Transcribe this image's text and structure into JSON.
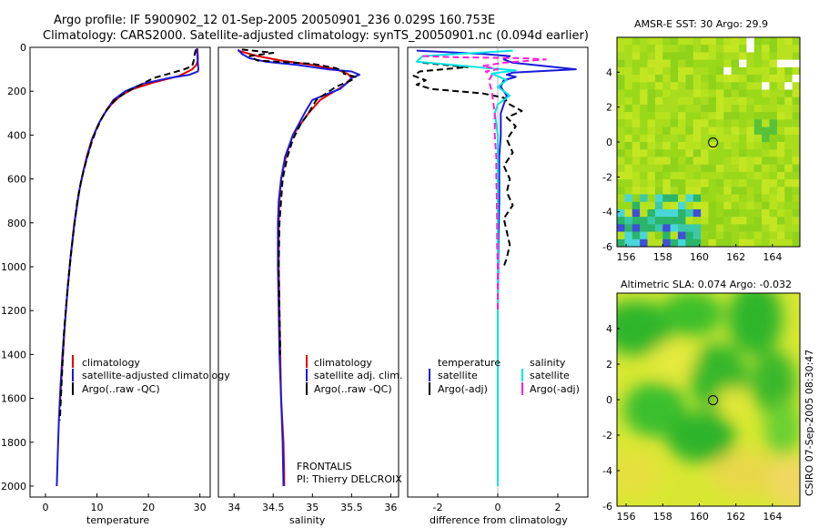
{
  "header": {
    "line1": "Argo profile: IF 5900902_12 01-Sep-2005 20050901_236 0.029S 160.753E",
    "line2": "Climatology: CARS2000. Satellite-adjusted climatology: synTS_20050901.nc (0.094d earlier)"
  },
  "side_label": "CSIRO 07-Sep-2005 08:30:47",
  "colors": {
    "climatology": "#e00000",
    "satellite": "#1a1adc",
    "argo": "#000000",
    "satellite_salinity": "#00e6e6",
    "argo_salinity": "#ff1ed2"
  },
  "chart_data": [
    {
      "type": "line",
      "id": "temperature",
      "xlabel": "temperature",
      "ylabel": "",
      "xlim": [
        -3,
        32
      ],
      "ylim": [
        2050,
        0
      ],
      "xticks": [
        0,
        10,
        20,
        30
      ],
      "yticks": [
        0,
        200,
        400,
        600,
        800,
        1000,
        1200,
        1400,
        1600,
        1800,
        2000
      ],
      "legend": [
        "climatology",
        "satellite-adjusted climatology",
        "Argo(..raw -QC)"
      ],
      "series": [
        {
          "name": "climatology",
          "style": "solid",
          "color": "#e00000",
          "points": [
            [
              29.5,
              5
            ],
            [
              29.6,
              40
            ],
            [
              29.6,
              60
            ],
            [
              29.3,
              80
            ],
            [
              28.5,
              100
            ],
            [
              26,
              130
            ],
            [
              21,
              160
            ],
            [
              17,
              190
            ],
            [
              14.6,
              220
            ],
            [
              12.8,
              260
            ],
            [
              11.5,
              300
            ],
            [
              10.3,
              350
            ],
            [
              9,
              420
            ],
            [
              8,
              500
            ],
            [
              7.2,
              580
            ],
            [
              6.5,
              660
            ],
            [
              5.6,
              800
            ],
            [
              4.9,
              950
            ],
            [
              4.3,
              1100
            ],
            [
              3.8,
              1250
            ],
            [
              3.4,
              1400
            ],
            [
              3.0,
              1550
            ],
            [
              2.8,
              1640
            ]
          ]
        },
        {
          "name": "satellite-adjusted climatology",
          "style": "solid",
          "color": "#1a1adc",
          "points": [
            [
              29.4,
              5
            ],
            [
              29.5,
              40
            ],
            [
              29.6,
              70
            ],
            [
              29.7,
              100
            ],
            [
              29.6,
              110
            ],
            [
              28,
              125
            ],
            [
              24,
              140
            ],
            [
              19,
              165
            ],
            [
              15.5,
              200
            ],
            [
              13.2,
              240
            ],
            [
              11.8,
              290
            ],
            [
              10.5,
              340
            ],
            [
              9.2,
              410
            ],
            [
              8.2,
              490
            ],
            [
              7.3,
              570
            ],
            [
              6.6,
              650
            ],
            [
              5.7,
              790
            ],
            [
              4.9,
              950
            ],
            [
              4.3,
              1100
            ],
            [
              3.8,
              1250
            ],
            [
              3.3,
              1400
            ],
            [
              2.9,
              1550
            ],
            [
              2.6,
              1700
            ],
            [
              2.4,
              1850
            ],
            [
              2.2,
              2000
            ]
          ]
        },
        {
          "name": "Argo(..raw -QC)",
          "style": "dashed",
          "color": "#000000",
          "points": [
            [
              29.2,
              10
            ],
            [
              29.0,
              30
            ],
            [
              28.8,
              60
            ],
            [
              28.5,
              85
            ],
            [
              27,
              100
            ],
            [
              24,
              120
            ],
            [
              21,
              140
            ],
            [
              18.5,
              170
            ],
            [
              16,
              200
            ],
            [
              13.5,
              240
            ],
            [
              12,
              280
            ],
            [
              11,
              320
            ],
            [
              10,
              370
            ],
            [
              9,
              430
            ],
            [
              8,
              510
            ],
            [
              7,
              600
            ],
            [
              6.2,
              700
            ],
            [
              5.4,
              850
            ],
            [
              4.7,
              1000
            ],
            [
              4.1,
              1150
            ],
            [
              3.6,
              1300
            ],
            [
              3.3,
              1450
            ],
            [
              3.0,
              1600
            ],
            [
              2.8,
              1700
            ]
          ]
        }
      ]
    },
    {
      "type": "line",
      "id": "salinity",
      "xlabel": "salinity",
      "ylabel": "",
      "xlim": [
        33.8,
        36.1
      ],
      "ylim": [
        2050,
        0
      ],
      "xticks": [
        34,
        34.5,
        35,
        35.5,
        36
      ],
      "legend": [
        "climatology",
        "satellite adj. clim.",
        "Argo(..raw -QC)"
      ],
      "annotation": [
        "FRONTALIS",
        "PI: Thierry DELCROIX"
      ],
      "series": [
        {
          "name": "climatology",
          "style": "solid",
          "color": "#e00000",
          "points": [
            [
              34.05,
              15
            ],
            [
              34.3,
              40
            ],
            [
              34.6,
              60
            ],
            [
              35.0,
              80
            ],
            [
              35.3,
              100
            ],
            [
              35.45,
              120
            ],
            [
              35.5,
              140
            ],
            [
              35.4,
              175
            ],
            [
              35.1,
              240
            ],
            [
              34.95,
              300
            ],
            [
              34.75,
              400
            ],
            [
              34.66,
              500
            ],
            [
              34.6,
              600
            ],
            [
              34.58,
              700
            ],
            [
              34.57,
              800
            ],
            [
              34.57,
              1000
            ],
            [
              34.58,
              1200
            ],
            [
              34.59,
              1400
            ],
            [
              34.6,
              1600
            ],
            [
              34.63,
              1800
            ],
            [
              34.64,
              1950
            ],
            [
              34.64,
              2000
            ]
          ]
        },
        {
          "name": "satellite adj. clim.",
          "style": "solid",
          "color": "#1a1adc",
          "points": [
            [
              34.05,
              10
            ],
            [
              34.1,
              30
            ],
            [
              34.2,
              50
            ],
            [
              34.4,
              65
            ],
            [
              34.8,
              80
            ],
            [
              35.2,
              100
            ],
            [
              35.5,
              110
            ],
            [
              35.6,
              125
            ],
            [
              35.5,
              140
            ],
            [
              35.45,
              160
            ],
            [
              35.35,
              190
            ],
            [
              35.0,
              240
            ],
            [
              34.9,
              300
            ],
            [
              34.75,
              400
            ],
            [
              34.65,
              500
            ],
            [
              34.6,
              600
            ],
            [
              34.57,
              700
            ],
            [
              34.56,
              800
            ],
            [
              34.56,
              1000
            ],
            [
              34.57,
              1200
            ],
            [
              34.58,
              1400
            ],
            [
              34.6,
              1600
            ],
            [
              34.62,
              1800
            ],
            [
              34.63,
              2000
            ]
          ]
        },
        {
          "name": "Argo(..raw -QC)",
          "style": "dashed",
          "color": "#000000",
          "points": [
            [
              34.1,
              10
            ],
            [
              34.5,
              25
            ],
            [
              34.2,
              40
            ],
            [
              34.3,
              60
            ],
            [
              35.0,
              75
            ],
            [
              35.3,
              95
            ],
            [
              35.4,
              110
            ],
            [
              35.4,
              120
            ],
            [
              35.55,
              135
            ],
            [
              35.5,
              150
            ],
            [
              35.3,
              180
            ],
            [
              35.05,
              240
            ],
            [
              34.95,
              300
            ],
            [
              34.85,
              350
            ],
            [
              34.75,
              420
            ],
            [
              34.68,
              500
            ],
            [
              34.62,
              600
            ],
            [
              34.6,
              700
            ],
            [
              34.58,
              800
            ],
            [
              34.57,
              1000
            ],
            [
              34.58,
              1200
            ],
            [
              34.59,
              1400
            ]
          ]
        }
      ]
    },
    {
      "type": "line",
      "id": "difference",
      "xlabel": "difference from climatology",
      "ylabel": "",
      "xlim": [
        -3,
        3
      ],
      "ylim": [
        2050,
        0
      ],
      "xticks": [
        -2,
        0,
        2
      ],
      "legend_temperature_title": "temperature",
      "legend_salinity_title": "salinity",
      "legend": [
        "satellite",
        "Argo(-adj)",
        "satellite",
        "Argo(-adj)"
      ],
      "series": [
        {
          "name": "temperature satellite",
          "style": "solid",
          "color": "#1a1adc",
          "points": [
            [
              -2.7,
              15
            ],
            [
              -0.5,
              30
            ],
            [
              0.4,
              40
            ],
            [
              0.2,
              55
            ],
            [
              0.5,
              70
            ],
            [
              2.6,
              100
            ],
            [
              0.5,
              115
            ],
            [
              0.3,
              125
            ],
            [
              0.6,
              135
            ],
            [
              0.2,
              150
            ],
            [
              0.1,
              180
            ],
            [
              0.3,
              220
            ],
            [
              0.2,
              260
            ],
            [
              0.1,
              300
            ],
            [
              0.1,
              400
            ],
            [
              0.05,
              500
            ],
            [
              0.05,
              700
            ],
            [
              0.02,
              900
            ],
            [
              0.0,
              1200
            ],
            [
              0.0,
              1600
            ],
            [
              0.0,
              2000
            ]
          ]
        },
        {
          "name": "temperature Argo(-adj)",
          "style": "dashed",
          "color": "#000000",
          "points": [
            [
              -2.5,
              70
            ],
            [
              -1.0,
              90
            ],
            [
              -2.6,
              110
            ],
            [
              -2.8,
              130
            ],
            [
              -2.4,
              150
            ],
            [
              -2.7,
              170
            ],
            [
              -2.2,
              190
            ],
            [
              -0.5,
              210
            ],
            [
              0.2,
              230
            ],
            [
              0.4,
              260
            ],
            [
              0.8,
              290
            ],
            [
              0.3,
              320
            ],
            [
              0.6,
              360
            ],
            [
              0.3,
              420
            ],
            [
              0.5,
              480
            ],
            [
              0.2,
              540
            ],
            [
              0.4,
              600
            ],
            [
              0.3,
              660
            ],
            [
              0.5,
              720
            ],
            [
              0.2,
              780
            ],
            [
              0.3,
              840
            ],
            [
              0.4,
              900
            ],
            [
              0.3,
              960
            ],
            [
              0.2,
              1000
            ]
          ]
        },
        {
          "name": "salinity satellite",
          "style": "solid",
          "color": "#00e6e6",
          "points": [
            [
              0.5,
              15
            ],
            [
              -2.5,
              40
            ],
            [
              -2.7,
              65
            ],
            [
              -1.5,
              80
            ],
            [
              -0.3,
              95
            ],
            [
              0.6,
              105
            ],
            [
              -0.2,
              120
            ],
            [
              0.3,
              150
            ],
            [
              0.0,
              180
            ],
            [
              0.4,
              220
            ],
            [
              0.0,
              260
            ],
            [
              -0.1,
              300
            ],
            [
              0.0,
              400
            ],
            [
              0.0,
              600
            ],
            [
              0.0,
              1000
            ],
            [
              0.0,
              1400
            ],
            [
              0.0,
              1800
            ],
            [
              0.0,
              2000
            ]
          ]
        },
        {
          "name": "salinity Argo(-adj)",
          "style": "dashed",
          "color": "#ff1ed2",
          "points": [
            [
              -2.5,
              40
            ],
            [
              -1.5,
              45
            ],
            [
              0.9,
              50
            ],
            [
              1.6,
              55
            ],
            [
              0.2,
              70
            ],
            [
              -0.5,
              85
            ],
            [
              0.0,
              100
            ],
            [
              -0.4,
              110
            ],
            [
              -0.2,
              130
            ],
            [
              -0.3,
              150
            ],
            [
              -0.2,
              200
            ],
            [
              -0.1,
              300
            ],
            [
              -0.1,
              400
            ],
            [
              -0.05,
              500
            ],
            [
              -0.05,
              600
            ],
            [
              -0.03,
              700
            ],
            [
              -0.02,
              800
            ],
            [
              -0.02,
              900
            ],
            [
              0.0,
              1000
            ],
            [
              0.0,
              1200
            ]
          ]
        }
      ]
    },
    {
      "type": "heatmap",
      "id": "sst-map",
      "title": "AMSR-E SST: 30 Argo: 29.9",
      "xlim": [
        155.5,
        165.5
      ],
      "ylim": [
        -6,
        6
      ],
      "xticks": [
        156,
        158,
        160,
        162,
        164
      ],
      "yticks": [
        -6,
        -4,
        -2,
        0,
        2,
        4
      ],
      "marker": {
        "lon": 160.753,
        "lat": -0.029
      }
    },
    {
      "type": "heatmap",
      "id": "sla-map",
      "title": "Altimetric SLA: 0.074 Argo: -0.032",
      "xlim": [
        155.5,
        165.5
      ],
      "ylim": [
        -6,
        6
      ],
      "xticks": [
        156,
        158,
        160,
        162,
        164
      ],
      "yticks": [
        -6,
        -4,
        -2,
        0,
        2,
        4
      ],
      "marker": {
        "lon": 160.753,
        "lat": -0.029
      }
    }
  ]
}
